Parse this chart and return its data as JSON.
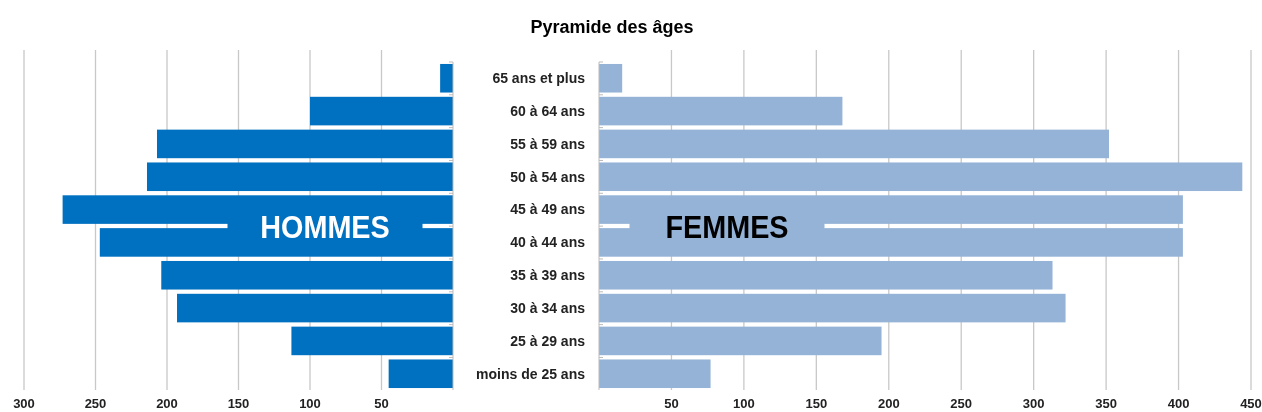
{
  "chart_data": [
    {
      "type": "bar",
      "orientation": "horizontal",
      "categories": [
        null,
        null,
        null,
        null,
        null,
        null,
        null,
        null,
        null,
        null
      ],
      "series": [
        {
          "name": "HOMMES",
          "color": "#0070c0",
          "values": [
            9,
            100,
            207,
            214,
            273,
            247,
            204,
            193,
            113,
            45
          ]
        }
      ],
      "xlim": [
        300,
        0
      ],
      "xticks": [
        300,
        250,
        200,
        150,
        100,
        50
      ],
      "tick_labels": "x",
      "grid": "x"
    },
    {
      "type": "bar",
      "orientation": "horizontal",
      "title": "Pyramide des âges",
      "categories": [
        "65 ans et plus",
        "60 à 64 ans",
        "55 à 59 ans",
        "50 à 54 ans",
        "45 à 49 ans",
        "40 à 44 ans",
        "35 à 39 ans",
        "30 à 34 ans",
        "25 à 29 ans",
        "moins de 25 ans"
      ],
      "series": [
        {
          "name": "FEMMES",
          "color": "#95b3d7",
          "values": [
            16,
            168,
            352,
            444,
            403,
            403,
            313,
            322,
            195,
            77
          ]
        }
      ],
      "xlim": [
        0,
        450
      ],
      "xticks": [
        50,
        100,
        150,
        200,
        250,
        300,
        350,
        400,
        450
      ],
      "grid": "x"
    }
  ]
}
